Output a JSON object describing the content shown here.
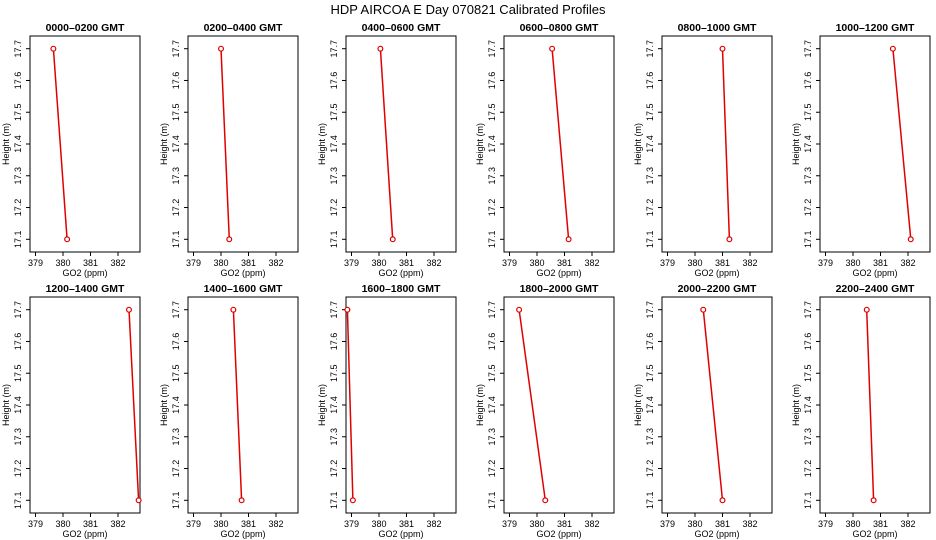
{
  "title": "HDP  AIRCOA E  Day 070821  Calibrated Profiles",
  "colors": {
    "series": "#e00000",
    "axis": "#000000"
  },
  "chart_data": [
    {
      "type": "line",
      "title": "0000–0200 GMT",
      "xlabel": "GO2 (ppm)",
      "ylabel": "Height (m)",
      "xlim": [
        378.8,
        382.8
      ],
      "ylim": [
        17.06,
        17.74
      ],
      "xticks": [
        "379",
        "380",
        "381",
        "382"
      ],
      "yticks": [
        "17.1",
        "17.2",
        "17.3",
        "17.4",
        "17.5",
        "17.6",
        "17.7"
      ],
      "x": [
        380.15,
        379.65
      ],
      "y": [
        17.1,
        17.7
      ]
    },
    {
      "type": "line",
      "title": "0200–0400 GMT",
      "xlabel": "GO2 (ppm)",
      "ylabel": "Height (m)",
      "xlim": [
        378.8,
        382.8
      ],
      "ylim": [
        17.06,
        17.74
      ],
      "xticks": [
        "379",
        "380",
        "381",
        "382"
      ],
      "yticks": [
        "17.1",
        "17.2",
        "17.3",
        "17.4",
        "17.5",
        "17.6",
        "17.7"
      ],
      "x": [
        380.3,
        380.0
      ],
      "y": [
        17.1,
        17.7
      ]
    },
    {
      "type": "line",
      "title": "0400–0600 GMT",
      "xlabel": "GO2 (ppm)",
      "ylabel": "Height (m)",
      "xlim": [
        378.8,
        382.8
      ],
      "ylim": [
        17.06,
        17.74
      ],
      "xticks": [
        "379",
        "380",
        "381",
        "382"
      ],
      "yticks": [
        "17.1",
        "17.2",
        "17.3",
        "17.4",
        "17.5",
        "17.6",
        "17.7"
      ],
      "x": [
        380.5,
        380.05
      ],
      "y": [
        17.1,
        17.7
      ]
    },
    {
      "type": "line",
      "title": "0600–0800 GMT",
      "xlabel": "GO2 (ppm)",
      "ylabel": "Height (m)",
      "xlim": [
        378.8,
        382.8
      ],
      "ylim": [
        17.06,
        17.74
      ],
      "xticks": [
        "379",
        "380",
        "381",
        "382"
      ],
      "yticks": [
        "17.1",
        "17.2",
        "17.3",
        "17.4",
        "17.5",
        "17.6",
        "17.7"
      ],
      "x": [
        381.15,
        380.55
      ],
      "y": [
        17.1,
        17.7
      ]
    },
    {
      "type": "line",
      "title": "0800–1000 GMT",
      "xlabel": "GO2 (ppm)",
      "ylabel": "Height (m)",
      "xlim": [
        378.8,
        382.8
      ],
      "ylim": [
        17.06,
        17.74
      ],
      "xticks": [
        "379",
        "380",
        "381",
        "382"
      ],
      "yticks": [
        "17.1",
        "17.2",
        "17.3",
        "17.4",
        "17.5",
        "17.6",
        "17.7"
      ],
      "x": [
        381.25,
        381.0
      ],
      "y": [
        17.1,
        17.7
      ]
    },
    {
      "type": "line",
      "title": "1000–1200 GMT",
      "xlabel": "GO2 (ppm)",
      "ylabel": "Height (m)",
      "xlim": [
        378.8,
        382.8
      ],
      "ylim": [
        17.06,
        17.74
      ],
      "xticks": [
        "379",
        "380",
        "381",
        "382"
      ],
      "yticks": [
        "17.1",
        "17.2",
        "17.3",
        "17.4",
        "17.5",
        "17.6",
        "17.7"
      ],
      "x": [
        382.1,
        381.45
      ],
      "y": [
        17.1,
        17.7
      ]
    },
    {
      "type": "line",
      "title": "1200–1400 GMT",
      "xlabel": "GO2 (ppm)",
      "ylabel": "Height (m)",
      "xlim": [
        378.8,
        382.8
      ],
      "ylim": [
        17.06,
        17.74
      ],
      "xticks": [
        "379",
        "380",
        "381",
        "382"
      ],
      "yticks": [
        "17.1",
        "17.2",
        "17.3",
        "17.4",
        "17.5",
        "17.6",
        "17.7"
      ],
      "x": [
        382.75,
        382.4
      ],
      "y": [
        17.1,
        17.7
      ]
    },
    {
      "type": "line",
      "title": "1400–1600 GMT",
      "xlabel": "GO2 (ppm)",
      "ylabel": "Height (m)",
      "xlim": [
        378.8,
        382.8
      ],
      "ylim": [
        17.06,
        17.74
      ],
      "xticks": [
        "379",
        "380",
        "381",
        "382"
      ],
      "yticks": [
        "17.1",
        "17.2",
        "17.3",
        "17.4",
        "17.5",
        "17.6",
        "17.7"
      ],
      "x": [
        380.75,
        380.45
      ],
      "y": [
        17.1,
        17.7
      ]
    },
    {
      "type": "line",
      "title": "1600–1800 GMT",
      "xlabel": "GO2 (ppm)",
      "ylabel": "Height (m)",
      "xlim": [
        378.8,
        382.8
      ],
      "ylim": [
        17.06,
        17.74
      ],
      "xticks": [
        "379",
        "380",
        "381",
        "382"
      ],
      "yticks": [
        "17.1",
        "17.2",
        "17.3",
        "17.4",
        "17.5",
        "17.6",
        "17.7"
      ],
      "x": [
        379.05,
        378.85
      ],
      "y": [
        17.1,
        17.7
      ]
    },
    {
      "type": "line",
      "title": "1800–2000 GMT",
      "xlabel": "GO2 (ppm)",
      "ylabel": "Height (m)",
      "xlim": [
        378.8,
        382.8
      ],
      "ylim": [
        17.06,
        17.74
      ],
      "xticks": [
        "379",
        "380",
        "381",
        "382"
      ],
      "yticks": [
        "17.1",
        "17.2",
        "17.3",
        "17.4",
        "17.5",
        "17.6",
        "17.7"
      ],
      "x": [
        380.3,
        379.35
      ],
      "y": [
        17.1,
        17.7
      ]
    },
    {
      "type": "line",
      "title": "2000–2200 GMT",
      "xlabel": "GO2 (ppm)",
      "ylabel": "Height (m)",
      "xlim": [
        378.8,
        382.8
      ],
      "ylim": [
        17.06,
        17.74
      ],
      "xticks": [
        "379",
        "380",
        "381",
        "382"
      ],
      "yticks": [
        "17.1",
        "17.2",
        "17.3",
        "17.4",
        "17.5",
        "17.6",
        "17.7"
      ],
      "x": [
        381.0,
        380.3
      ],
      "y": [
        17.1,
        17.7
      ]
    },
    {
      "type": "line",
      "title": "2200–2400 GMT",
      "xlabel": "GO2 (ppm)",
      "ylabel": "Height (m)",
      "xlim": [
        378.8,
        382.8
      ],
      "ylim": [
        17.06,
        17.74
      ],
      "xticks": [
        "379",
        "380",
        "381",
        "382"
      ],
      "yticks": [
        "17.1",
        "17.2",
        "17.3",
        "17.4",
        "17.5",
        "17.6",
        "17.7"
      ],
      "x": [
        380.75,
        380.5
      ],
      "y": [
        17.1,
        17.7
      ]
    }
  ]
}
